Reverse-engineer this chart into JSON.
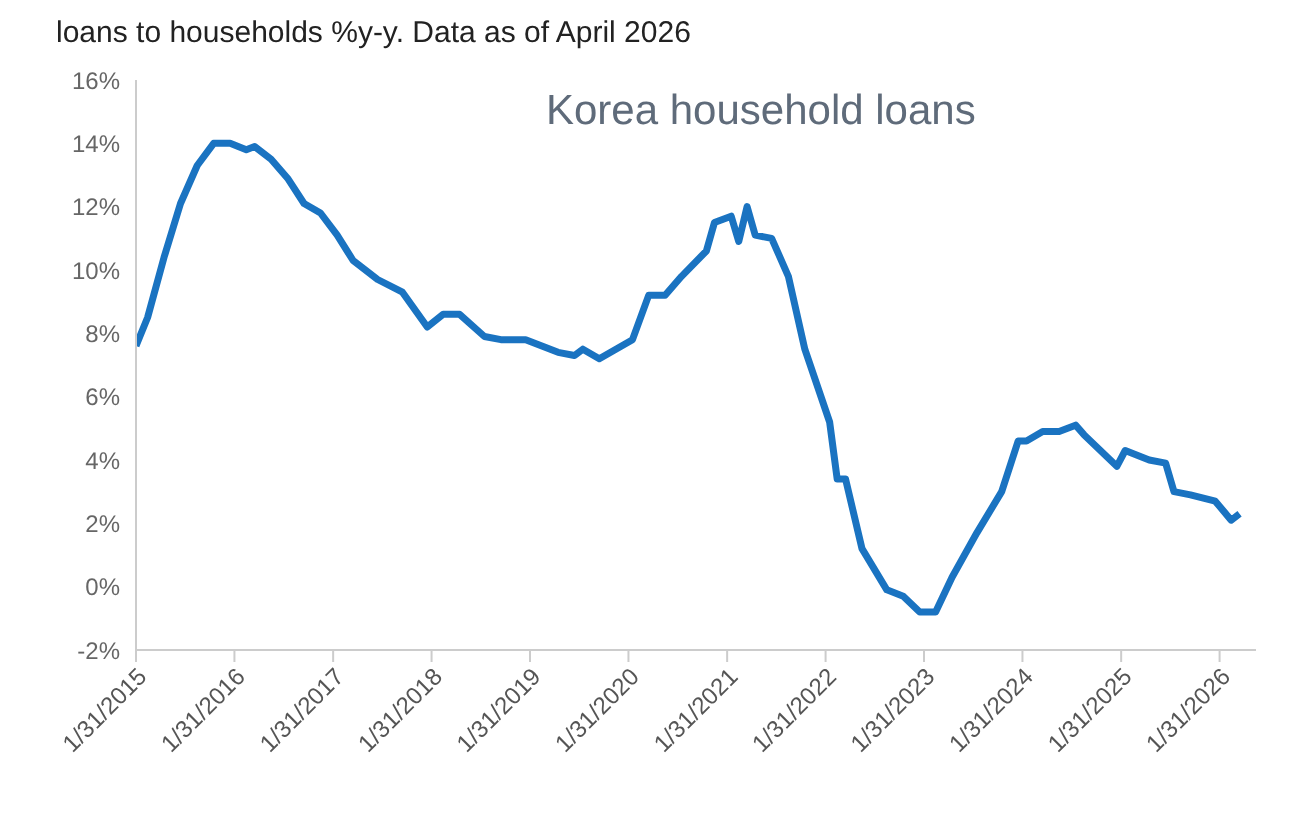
{
  "chart_data": {
    "type": "line",
    "title": "loans to households %y-y. Data as of April 2026",
    "subtitle": "Korea household loans",
    "x": [
      "2015-01-31",
      "2015-03",
      "2015-05",
      "2015-07",
      "2015-09",
      "2015-11",
      "2016-01",
      "2016-03",
      "2016-04",
      "2016-06",
      "2016-08",
      "2016-10",
      "2016-12",
      "2017-02",
      "2017-04",
      "2017-07",
      "2017-10",
      "2018-01",
      "2018-03",
      "2018-05",
      "2018-08",
      "2018-10",
      "2019-01",
      "2019-05",
      "2019-07",
      "2019-08",
      "2019-10",
      "2020-02",
      "2020-04",
      "2020-06",
      "2020-08",
      "2020-11",
      "2020-12",
      "2021-02",
      "2021-03",
      "2021-04",
      "2021-05",
      "2021-07",
      "2021-09",
      "2021-11",
      "2022-02",
      "2022-03",
      "2022-04",
      "2022-06",
      "2022-09",
      "2022-11",
      "2023-01",
      "2023-03",
      "2023-05",
      "2023-08",
      "2023-11",
      "2024-01",
      "2024-02",
      "2024-04",
      "2024-06",
      "2024-08",
      "2024-09",
      "2025-01",
      "2025-02",
      "2025-05",
      "2025-07",
      "2025-08",
      "2025-10",
      "2026-01",
      "2026-03",
      "2026-04"
    ],
    "series": [
      {
        "color": "#1a73c1",
        "values": [
          7.6,
          8.5,
          10.4,
          12.1,
          13.3,
          14.0,
          14.0,
          13.8,
          13.9,
          13.5,
          12.9,
          12.1,
          11.8,
          11.1,
          10.3,
          9.7,
          9.3,
          8.2,
          8.6,
          8.6,
          7.9,
          7.8,
          7.8,
          7.4,
          7.3,
          7.5,
          7.2,
          7.8,
          9.2,
          9.2,
          9.8,
          10.6,
          11.5,
          11.7,
          10.9,
          12.0,
          11.1,
          11.0,
          9.8,
          7.5,
          5.2,
          3.4,
          3.4,
          1.2,
          -0.1,
          -0.3,
          -0.8,
          -0.8,
          0.3,
          1.7,
          3.0,
          4.6,
          4.6,
          4.9,
          4.9,
          5.1,
          4.8,
          3.8,
          4.3,
          4.0,
          3.9,
          3.0,
          2.9,
          2.7,
          2.1,
          2.3
        ]
      }
    ],
    "xlim": [
      "2015-01-31",
      "2026-06-15"
    ],
    "xticks": [
      {
        "value": "2015-01-31",
        "label": "1/31/2015"
      },
      {
        "value": "2016-01-31",
        "label": "1/31/2016"
      },
      {
        "value": "2017-01-31",
        "label": "1/31/2017"
      },
      {
        "value": "2018-01-31",
        "label": "1/31/2018"
      },
      {
        "value": "2019-01-31",
        "label": "1/31/2019"
      },
      {
        "value": "2020-01-31",
        "label": "1/31/2020"
      },
      {
        "value": "2021-01-31",
        "label": "1/31/2021"
      },
      {
        "value": "2022-01-31",
        "label": "1/31/2022"
      },
      {
        "value": "2023-01-31",
        "label": "1/31/2023"
      },
      {
        "value": "2024-01-31",
        "label": "1/31/2024"
      },
      {
        "value": "2025-01-31",
        "label": "1/31/2025"
      },
      {
        "value": "2026-01-31",
        "label": "1/31/2026"
      }
    ],
    "ylim": [
      -2,
      16
    ],
    "yticks": [
      {
        "value": -2,
        "label": "-2%"
      },
      {
        "value": 0,
        "label": "0%"
      },
      {
        "value": 2,
        "label": "2%"
      },
      {
        "value": 4,
        "label": "4%"
      },
      {
        "value": 6,
        "label": "6%"
      },
      {
        "value": 8,
        "label": "8%"
      },
      {
        "value": 10,
        "label": "10%"
      },
      {
        "value": 12,
        "label": "12%"
      },
      {
        "value": 14,
        "label": "14%"
      },
      {
        "value": 16,
        "label": "16%"
      }
    ],
    "grid": false,
    "legend": false,
    "marker": "none",
    "line_style": "solid"
  }
}
